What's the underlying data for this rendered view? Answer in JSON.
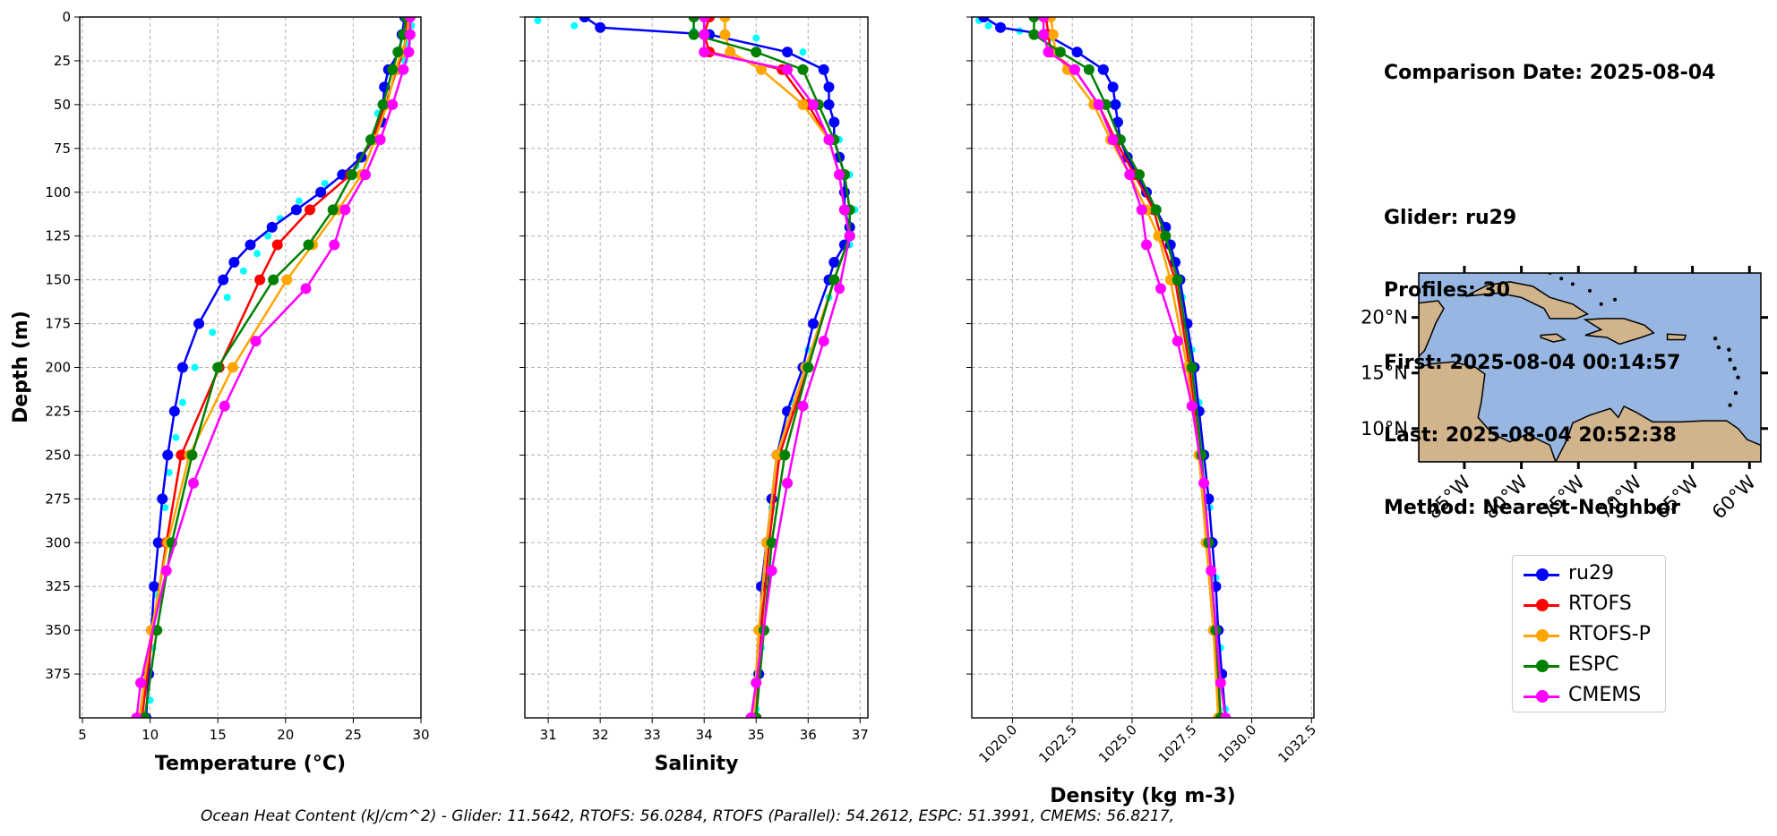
{
  "info": {
    "comparison_date": "Comparison Date: 2025-08-04",
    "glider": "Glider: ru29",
    "profiles": "Profiles: 30",
    "first": "First: 2025-08-04 00:14:57",
    "last": "Last: 2025-08-04 20:52:38",
    "method": "Method: Nearest-Neighbor"
  },
  "footer": "Ocean Heat Content (kJ/cm^2) - Glider: 11.5642,  RTOFS: 56.0284,  RTOFS (Parallel): 54.2612,  ESPC: 51.3991,  CMEMS: 56.8217,",
  "ylabel": "Depth (m)",
  "colors": {
    "ru29": "#0000ff",
    "RTOFS": "#ff0000",
    "RTOFS-P": "#ffa500",
    "ESPC": "#008000",
    "CMEMS": "#ff00ff",
    "scatter": "#00ffff",
    "ocean": "#97b6e1",
    "land": "#d2b48c"
  },
  "legend": [
    {
      "name": "ru29",
      "color": "#0000ff"
    },
    {
      "name": "RTOFS",
      "color": "#ff0000"
    },
    {
      "name": "RTOFS-P",
      "color": "#ffa500"
    },
    {
      "name": "ESPC",
      "color": "#008000"
    },
    {
      "name": "CMEMS",
      "color": "#ff00ff"
    }
  ],
  "map": {
    "lat_ticks": [
      "20°N",
      "15°N",
      "10°N"
    ],
    "lat_values": [
      20,
      15,
      10
    ],
    "lon_ticks": [
      "85°W",
      "80°W",
      "75°W",
      "70°W",
      "65°W",
      "60°W"
    ],
    "lon_values": [
      -85,
      -80,
      -75,
      -70,
      -65,
      -60
    ],
    "extent": [
      -89,
      -59,
      7,
      24
    ]
  },
  "chart_data": [
    {
      "type": "line",
      "xlabel": "Temperature (°C)",
      "ylabel": "Depth (m)",
      "xlim": [
        4.8,
        30.0
      ],
      "ylim": [
        400,
        0
      ],
      "x_ticks": [
        "5",
        "10",
        "15",
        "20",
        "25",
        "30"
      ],
      "x_tick_values": [
        5,
        10,
        15,
        20,
        25,
        30
      ],
      "y_ticks": [
        "0",
        "25",
        "50",
        "75",
        "100",
        "125",
        "150",
        "175",
        "200",
        "225",
        "250",
        "275",
        "300",
        "325",
        "350",
        "375"
      ],
      "y_tick_values": [
        0,
        25,
        50,
        75,
        100,
        125,
        150,
        175,
        200,
        225,
        250,
        275,
        300,
        325,
        350,
        375
      ],
      "grid": true,
      "series": [
        {
          "name": "ru29",
          "depth": [
            0,
            10,
            20,
            30,
            40,
            50,
            60,
            70,
            80,
            90,
            100,
            110,
            120,
            130,
            140,
            150,
            175,
            200,
            225,
            250,
            275,
            300,
            325,
            350,
            375,
            400
          ],
          "values": [
            28.8,
            28.6,
            28.4,
            27.6,
            27.3,
            27.2,
            27.1,
            26.5,
            25.6,
            24.2,
            22.6,
            20.8,
            19.0,
            17.4,
            16.2,
            15.4,
            13.6,
            12.4,
            11.8,
            11.3,
            10.9,
            10.6,
            10.3,
            10.1,
            9.9,
            9.7
          ]
        },
        {
          "name": "RTOFS",
          "depth": [
            0,
            10,
            20,
            30,
            50,
            70,
            90,
            110,
            130,
            150,
            200,
            250,
            300,
            350,
            400
          ],
          "values": [
            29.0,
            28.9,
            28.7,
            28.2,
            27.4,
            26.4,
            24.8,
            21.8,
            19.4,
            18.1,
            15.1,
            12.3,
            11.2,
            10.2,
            9.4
          ]
        },
        {
          "name": "RTOFS-P",
          "depth": [
            0,
            10,
            20,
            30,
            50,
            70,
            90,
            110,
            130,
            150,
            200,
            250,
            300,
            350,
            400
          ],
          "values": [
            29.1,
            29.0,
            28.6,
            28.1,
            27.5,
            26.6,
            25.6,
            23.9,
            22.0,
            20.1,
            16.1,
            12.9,
            11.3,
            10.1,
            9.2
          ]
        },
        {
          "name": "ESPC",
          "depth": [
            0,
            10,
            20,
            30,
            50,
            70,
            90,
            110,
            130,
            150,
            200,
            250,
            300,
            350,
            400
          ],
          "values": [
            28.9,
            28.7,
            28.3,
            27.9,
            27.2,
            26.3,
            24.9,
            23.5,
            21.7,
            19.1,
            15.0,
            13.1,
            11.6,
            10.5,
            9.6
          ]
        },
        {
          "name": "CMEMS",
          "depth": [
            0,
            10,
            20,
            30,
            50,
            70,
            90,
            110,
            130,
            155,
            185,
            222,
            266,
            316,
            380,
            400
          ],
          "values": [
            29.2,
            29.2,
            29.1,
            28.7,
            27.9,
            27.0,
            25.9,
            24.4,
            23.6,
            21.5,
            17.8,
            15.5,
            13.2,
            11.2,
            9.3,
            9.0
          ]
        }
      ],
      "scatter_series": {
        "name": "glider points",
        "depth": [
          5,
          15,
          25,
          40,
          55,
          70,
          85,
          95,
          105,
          115,
          125,
          135,
          145,
          160,
          180,
          200,
          220,
          240,
          260,
          280,
          300,
          330,
          360,
          390
        ],
        "values": [
          29.3,
          29.0,
          28.8,
          27.5,
          26.8,
          26.3,
          25.2,
          22.9,
          21.0,
          19.6,
          18.7,
          17.9,
          16.9,
          15.7,
          14.6,
          13.3,
          12.4,
          11.9,
          11.4,
          11.1,
          10.8,
          10.5,
          10.2,
          10.0
        ]
      }
    },
    {
      "type": "line",
      "xlabel": "Salinity",
      "xlim": [
        30.55,
        37.15
      ],
      "ylim": [
        400,
        0
      ],
      "x_ticks": [
        "31",
        "32",
        "33",
        "34",
        "35",
        "36",
        "37"
      ],
      "x_tick_values": [
        31,
        32,
        33,
        34,
        35,
        36,
        37
      ],
      "grid": true,
      "series": [
        {
          "name": "ru29",
          "depth": [
            0,
            6,
            10,
            20,
            30,
            40,
            50,
            60,
            70,
            80,
            90,
            100,
            110,
            120,
            125,
            130,
            140,
            150,
            175,
            200,
            225,
            250,
            275,
            300,
            325,
            350,
            375,
            400
          ],
          "values": [
            31.7,
            32.0,
            34.1,
            35.6,
            36.3,
            36.4,
            36.4,
            36.5,
            36.5,
            36.6,
            36.7,
            36.7,
            36.7,
            36.8,
            36.8,
            36.7,
            36.5,
            36.4,
            36.1,
            35.9,
            35.6,
            35.4,
            35.3,
            35.2,
            35.1,
            35.1,
            35.05,
            35.0
          ]
        },
        {
          "name": "RTOFS",
          "depth": [
            0,
            10,
            20,
            30,
            50,
            70,
            90,
            110,
            125,
            150,
            200,
            250,
            300,
            350,
            400
          ],
          "values": [
            34.1,
            34.0,
            34.1,
            35.5,
            36.0,
            36.4,
            36.6,
            36.7,
            36.8,
            36.5,
            36.0,
            35.45,
            35.25,
            35.1,
            35.0
          ]
        },
        {
          "name": "RTOFS-P",
          "depth": [
            0,
            10,
            20,
            30,
            50,
            70,
            90,
            110,
            125,
            150,
            200,
            250,
            300,
            350,
            400
          ],
          "values": [
            34.4,
            34.4,
            34.5,
            35.1,
            35.9,
            36.4,
            36.6,
            36.7,
            36.8,
            36.5,
            35.95,
            35.4,
            35.2,
            35.05,
            34.95
          ]
        },
        {
          "name": "ESPC",
          "depth": [
            0,
            10,
            20,
            30,
            50,
            70,
            90,
            110,
            125,
            150,
            200,
            250,
            300,
            350,
            400
          ],
          "values": [
            33.8,
            33.8,
            35.0,
            35.9,
            36.2,
            36.5,
            36.7,
            36.8,
            36.8,
            36.5,
            36.0,
            35.55,
            35.3,
            35.15,
            35.0
          ]
        },
        {
          "name": "CMEMS",
          "depth": [
            0,
            10,
            20,
            30,
            50,
            70,
            90,
            110,
            125,
            155,
            185,
            222,
            266,
            316,
            380,
            400
          ],
          "values": [
            34.0,
            34.0,
            34.0,
            35.6,
            36.1,
            36.4,
            36.6,
            36.7,
            36.8,
            36.6,
            36.3,
            35.9,
            35.6,
            35.3,
            35.0,
            34.9
          ]
        }
      ],
      "scatter_series": {
        "name": "glider points",
        "depth": [
          2,
          5,
          8,
          12,
          20,
          30,
          50,
          70,
          90,
          110,
          130,
          160,
          190,
          220,
          250,
          280,
          320,
          360,
          395
        ],
        "values": [
          30.8,
          31.5,
          33.8,
          35.0,
          35.9,
          36.3,
          36.4,
          36.6,
          36.8,
          36.9,
          36.8,
          36.4,
          36.0,
          35.7,
          35.5,
          35.3,
          35.2,
          35.1,
          35.0
        ]
      }
    },
    {
      "type": "line",
      "xlabel": "Density (kg m-3)",
      "xlim": [
        1018.3,
        1032.6
      ],
      "ylim": [
        400,
        0
      ],
      "x_ticks": [
        "1020.0",
        "1022.5",
        "1025.0",
        "1027.5",
        "1030.0",
        "1032.5"
      ],
      "x_tick_values": [
        1020.0,
        1022.5,
        1025.0,
        1027.5,
        1030.0,
        1032.5
      ],
      "grid": true,
      "series": [
        {
          "name": "ru29",
          "depth": [
            0,
            6,
            10,
            20,
            30,
            40,
            50,
            60,
            70,
            80,
            90,
            100,
            110,
            120,
            130,
            140,
            150,
            175,
            200,
            225,
            250,
            275,
            300,
            325,
            350,
            375,
            400
          ],
          "values": [
            1018.8,
            1019.5,
            1021.4,
            1022.7,
            1023.8,
            1024.2,
            1024.3,
            1024.4,
            1024.5,
            1024.8,
            1025.2,
            1025.6,
            1026.0,
            1026.4,
            1026.6,
            1026.8,
            1027.0,
            1027.3,
            1027.6,
            1027.8,
            1028.0,
            1028.2,
            1028.35,
            1028.5,
            1028.6,
            1028.75,
            1028.9
          ]
        },
        {
          "name": "RTOFS",
          "depth": [
            0,
            10,
            20,
            30,
            50,
            70,
            90,
            110,
            125,
            150,
            200,
            250,
            300,
            350,
            400
          ],
          "values": [
            1021.4,
            1021.5,
            1021.6,
            1022.6,
            1023.6,
            1024.3,
            1025.1,
            1025.9,
            1026.2,
            1026.8,
            1027.4,
            1027.8,
            1028.1,
            1028.4,
            1028.7
          ]
        },
        {
          "name": "RTOFS-P",
          "depth": [
            0,
            10,
            20,
            30,
            50,
            70,
            90,
            110,
            125,
            150,
            200,
            250,
            300,
            350,
            400
          ],
          "values": [
            1021.6,
            1021.7,
            1021.8,
            1022.3,
            1023.4,
            1024.1,
            1024.9,
            1025.6,
            1026.1,
            1026.6,
            1027.3,
            1027.8,
            1028.1,
            1028.4,
            1028.6
          ]
        },
        {
          "name": "ESPC",
          "depth": [
            0,
            10,
            20,
            30,
            50,
            70,
            90,
            110,
            125,
            150,
            200,
            250,
            300,
            350,
            400
          ],
          "values": [
            1020.9,
            1020.9,
            1022.0,
            1023.2,
            1023.9,
            1024.5,
            1025.3,
            1026.0,
            1026.4,
            1026.9,
            1027.5,
            1027.9,
            1028.2,
            1028.5,
            1028.7
          ]
        },
        {
          "name": "CMEMS",
          "depth": [
            0,
            10,
            20,
            30,
            50,
            70,
            90,
            110,
            130,
            155,
            185,
            222,
            266,
            316,
            380,
            400
          ],
          "values": [
            1021.3,
            1021.3,
            1021.5,
            1022.6,
            1023.6,
            1024.2,
            1024.9,
            1025.4,
            1025.6,
            1026.2,
            1026.9,
            1027.5,
            1028.0,
            1028.3,
            1028.7,
            1028.9
          ]
        }
      ],
      "scatter_series": {
        "name": "glider points",
        "depth": [
          2,
          5,
          8,
          12,
          20,
          30,
          50,
          70,
          90,
          110,
          130,
          160,
          190,
          220,
          250,
          280,
          320,
          360,
          395
        ],
        "values": [
          1018.6,
          1019.0,
          1020.3,
          1021.6,
          1022.8,
          1023.7,
          1024.4,
          1024.6,
          1025.2,
          1026.0,
          1026.6,
          1027.1,
          1027.5,
          1027.8,
          1028.05,
          1028.25,
          1028.5,
          1028.7,
          1028.9
        ]
      }
    }
  ]
}
